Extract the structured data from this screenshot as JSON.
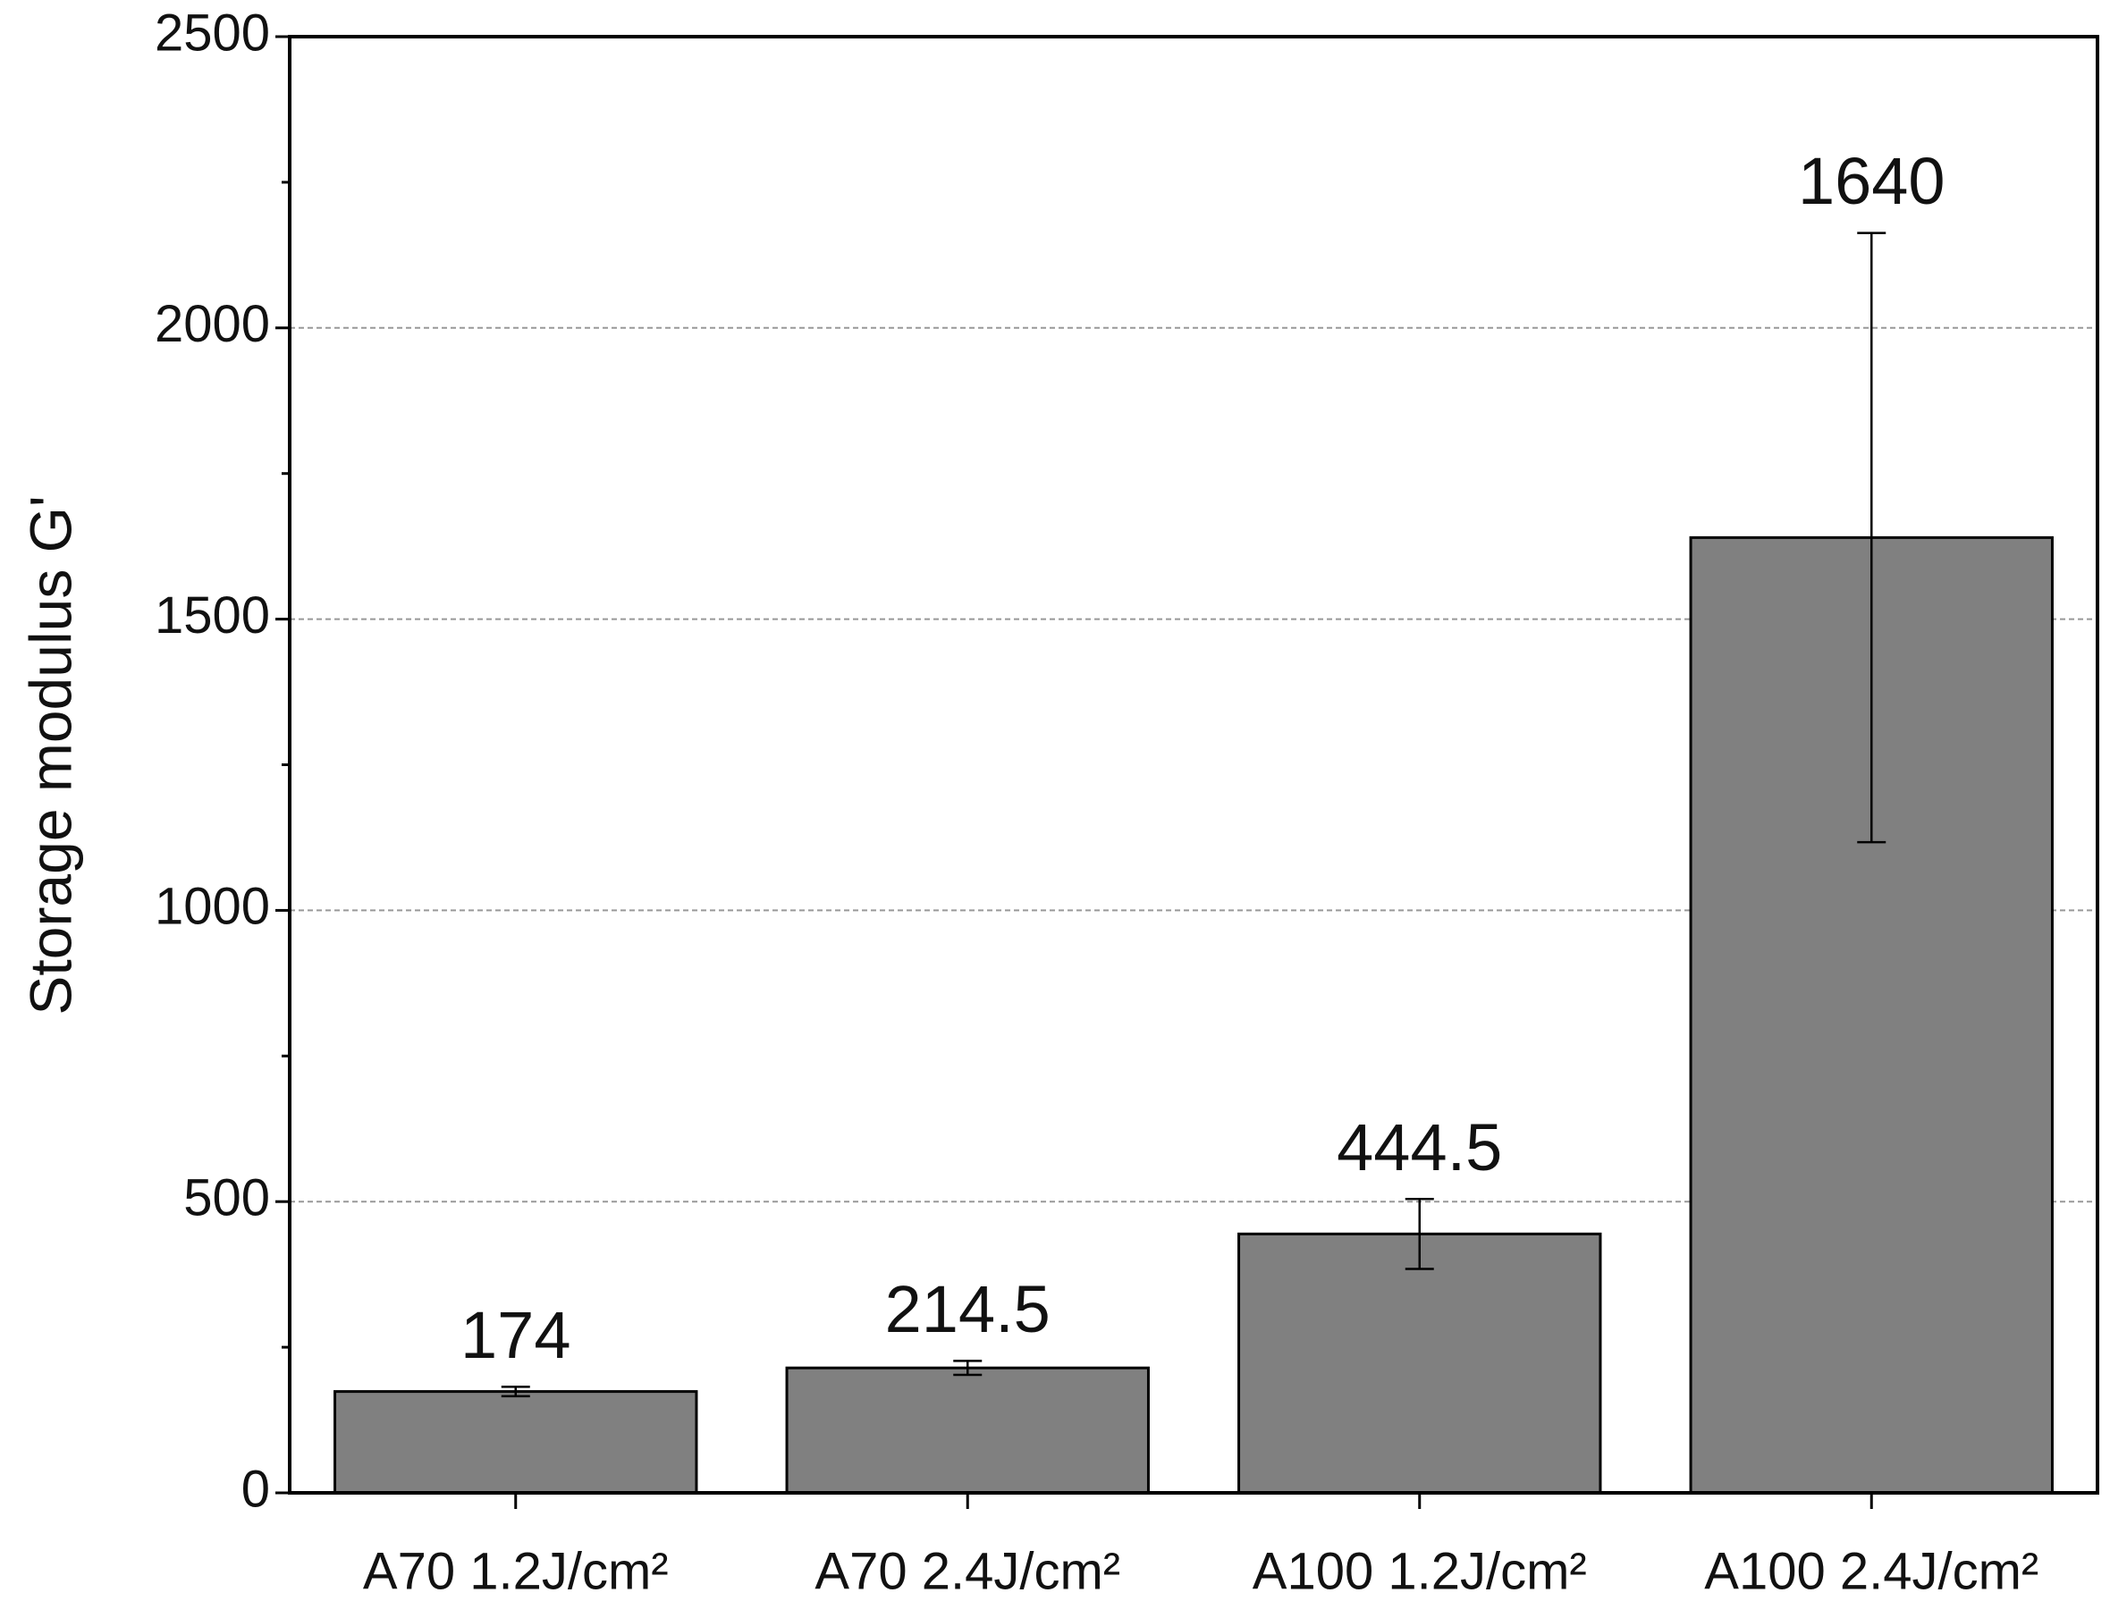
{
  "chart_data": {
    "type": "bar",
    "y_label": "Storage modulus G'",
    "categories": [
      "A70 1.2J/cm²",
      "A70 2.4J/cm²",
      "A100 1.2J/cm²",
      "A100 2.4J/cm²"
    ],
    "values": [
      174,
      214.5,
      444.5,
      1640
    ],
    "errors": [
      8,
      12,
      60,
      523
    ],
    "color": "#808080",
    "ylim": [
      0,
      2500
    ],
    "yticks": [
      0,
      500,
      1000,
      1500,
      2000,
      2500
    ],
    "grid": true
  }
}
